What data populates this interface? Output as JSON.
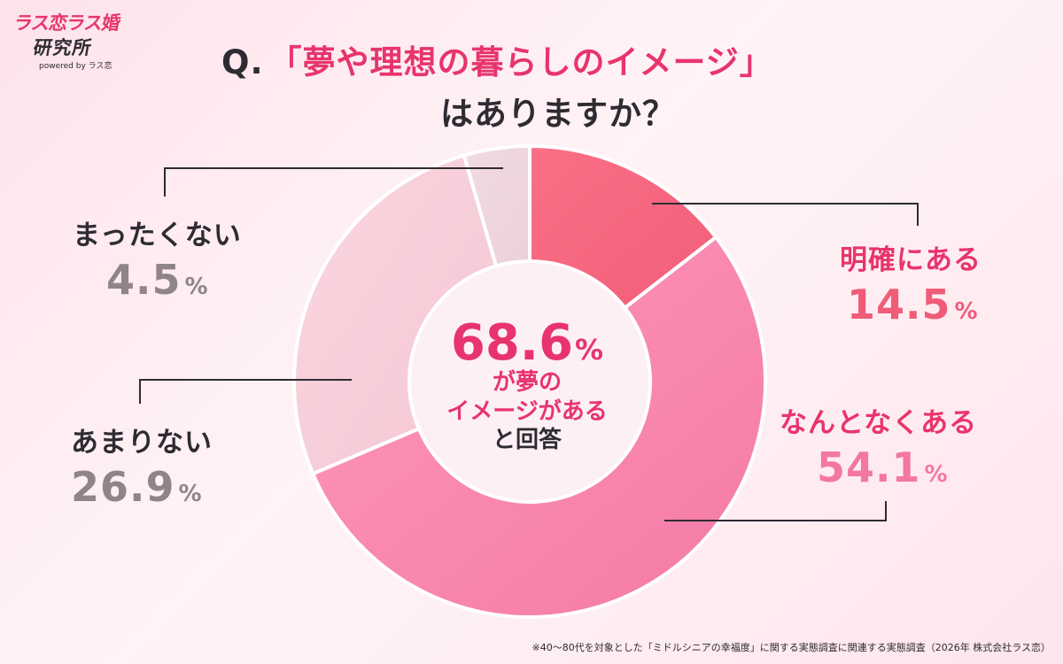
{
  "logo": {
    "line1": "ラス恋ラス婚",
    "line2": "研究所",
    "line3": "powered by ラス恋"
  },
  "title": {
    "q": "Q.",
    "quote": "「夢や理想の暮らしのイメージ」",
    "line2": "はありますか？"
  },
  "center": {
    "value": "68.6",
    "unit": "%",
    "line1": "が夢の",
    "line2": "イメージがある",
    "line3": "と回答"
  },
  "chart_data": {
    "type": "pie",
    "style": "donut",
    "start_angle_deg": 0,
    "direction": "clockwise",
    "slices": [
      {
        "label": "明確にある",
        "value": 14.5,
        "color": "#f25e7a",
        "color_light": "#fa6f86",
        "label_color": "#e8346e",
        "value_color": "#f05c78"
      },
      {
        "label": "なんとなくある",
        "value": 54.1,
        "color": "#f47aa5",
        "color_light": "#ff97bc",
        "label_color": "#e8346e",
        "value_color": "#f377a3"
      },
      {
        "label": "あまりない",
        "value": 26.9,
        "color": "#f4c6d3",
        "color_light": "#f9d6df",
        "label_color": "#2e2b32",
        "value_color": "#8f8589"
      },
      {
        "label": "まったくない",
        "value": 4.5,
        "color": "#ecd0d9",
        "color_light": "#f1dbe2",
        "label_color": "#2e2b32",
        "value_color": "#8f8589"
      }
    ],
    "unit": "%"
  },
  "footnote": "※40～80代を対象とした「ミドルシニアの幸福度」に関する実態調査に関連する実態調査（2026年 株式会社ラス恋）"
}
